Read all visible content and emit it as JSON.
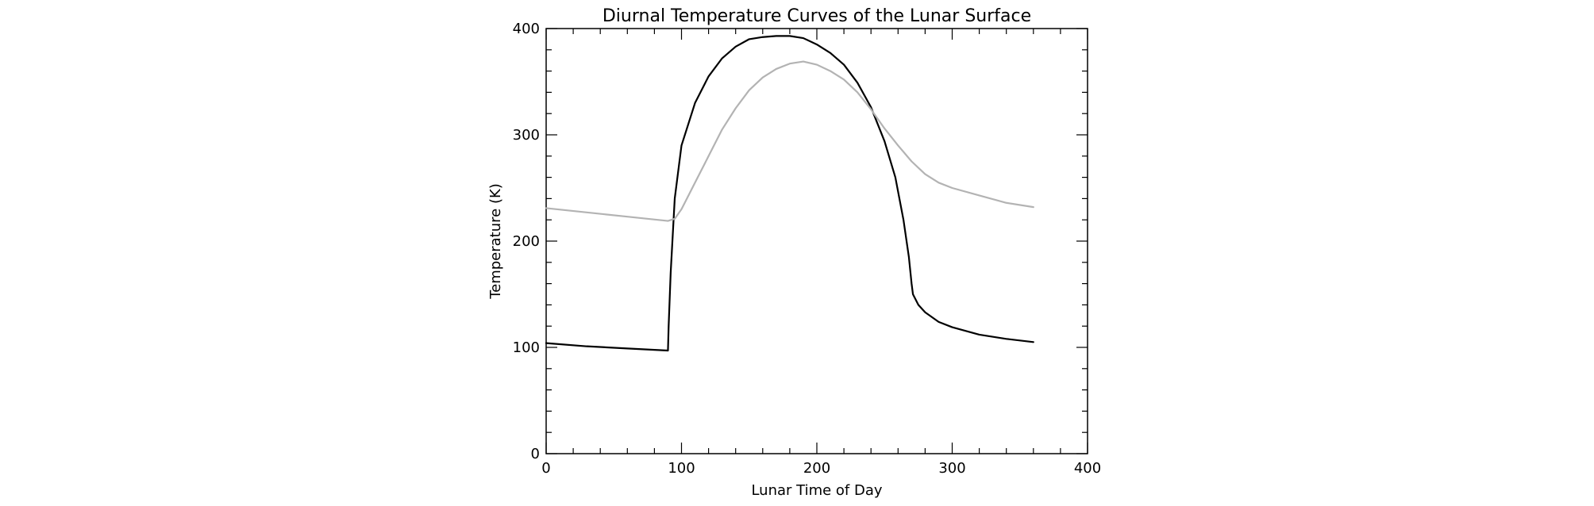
{
  "chart_data": {
    "type": "line",
    "title": "Diurnal Temperature Curves of the Lunar Surface",
    "xlabel": "Lunar Time of Day",
    "ylabel": "Temperature (K)",
    "xlim": [
      0,
      400
    ],
    "ylim": [
      0,
      400
    ],
    "xticks": [
      0,
      100,
      200,
      300,
      400
    ],
    "yticks": [
      0,
      100,
      200,
      300,
      400
    ],
    "grid": false,
    "legend": "none",
    "series": [
      {
        "color": "#000000",
        "x": [
          0,
          30,
          60,
          90,
          90.5,
          92,
          95,
          100,
          110,
          120,
          130,
          140,
          150,
          160,
          170,
          180,
          190,
          200,
          210,
          220,
          230,
          240,
          250,
          258,
          264,
          268,
          270,
          271,
          275,
          280,
          290,
          300,
          320,
          340,
          360
        ],
        "y": [
          104,
          101,
          99,
          97,
          120,
          170,
          240,
          290,
          330,
          355,
          372,
          383,
          390,
          392,
          393,
          393,
          391,
          385,
          377,
          366,
          349,
          326,
          294,
          260,
          220,
          185,
          160,
          150,
          140,
          133,
          124,
          119,
          112,
          108,
          105
        ]
      },
      {
        "color": "#b3b3b3",
        "x": [
          0,
          30,
          60,
          90,
          95,
          100,
          110,
          120,
          130,
          140,
          150,
          160,
          170,
          180,
          190,
          200,
          210,
          220,
          230,
          240,
          250,
          260,
          270,
          280,
          290,
          300,
          320,
          340,
          360
        ],
        "y": [
          231,
          227,
          223,
          219,
          221,
          230,
          255,
          280,
          305,
          325,
          342,
          354,
          362,
          367,
          369,
          366,
          360,
          352,
          340,
          324,
          306,
          290,
          275,
          263,
          255,
          250,
          243,
          236,
          232
        ]
      }
    ]
  }
}
